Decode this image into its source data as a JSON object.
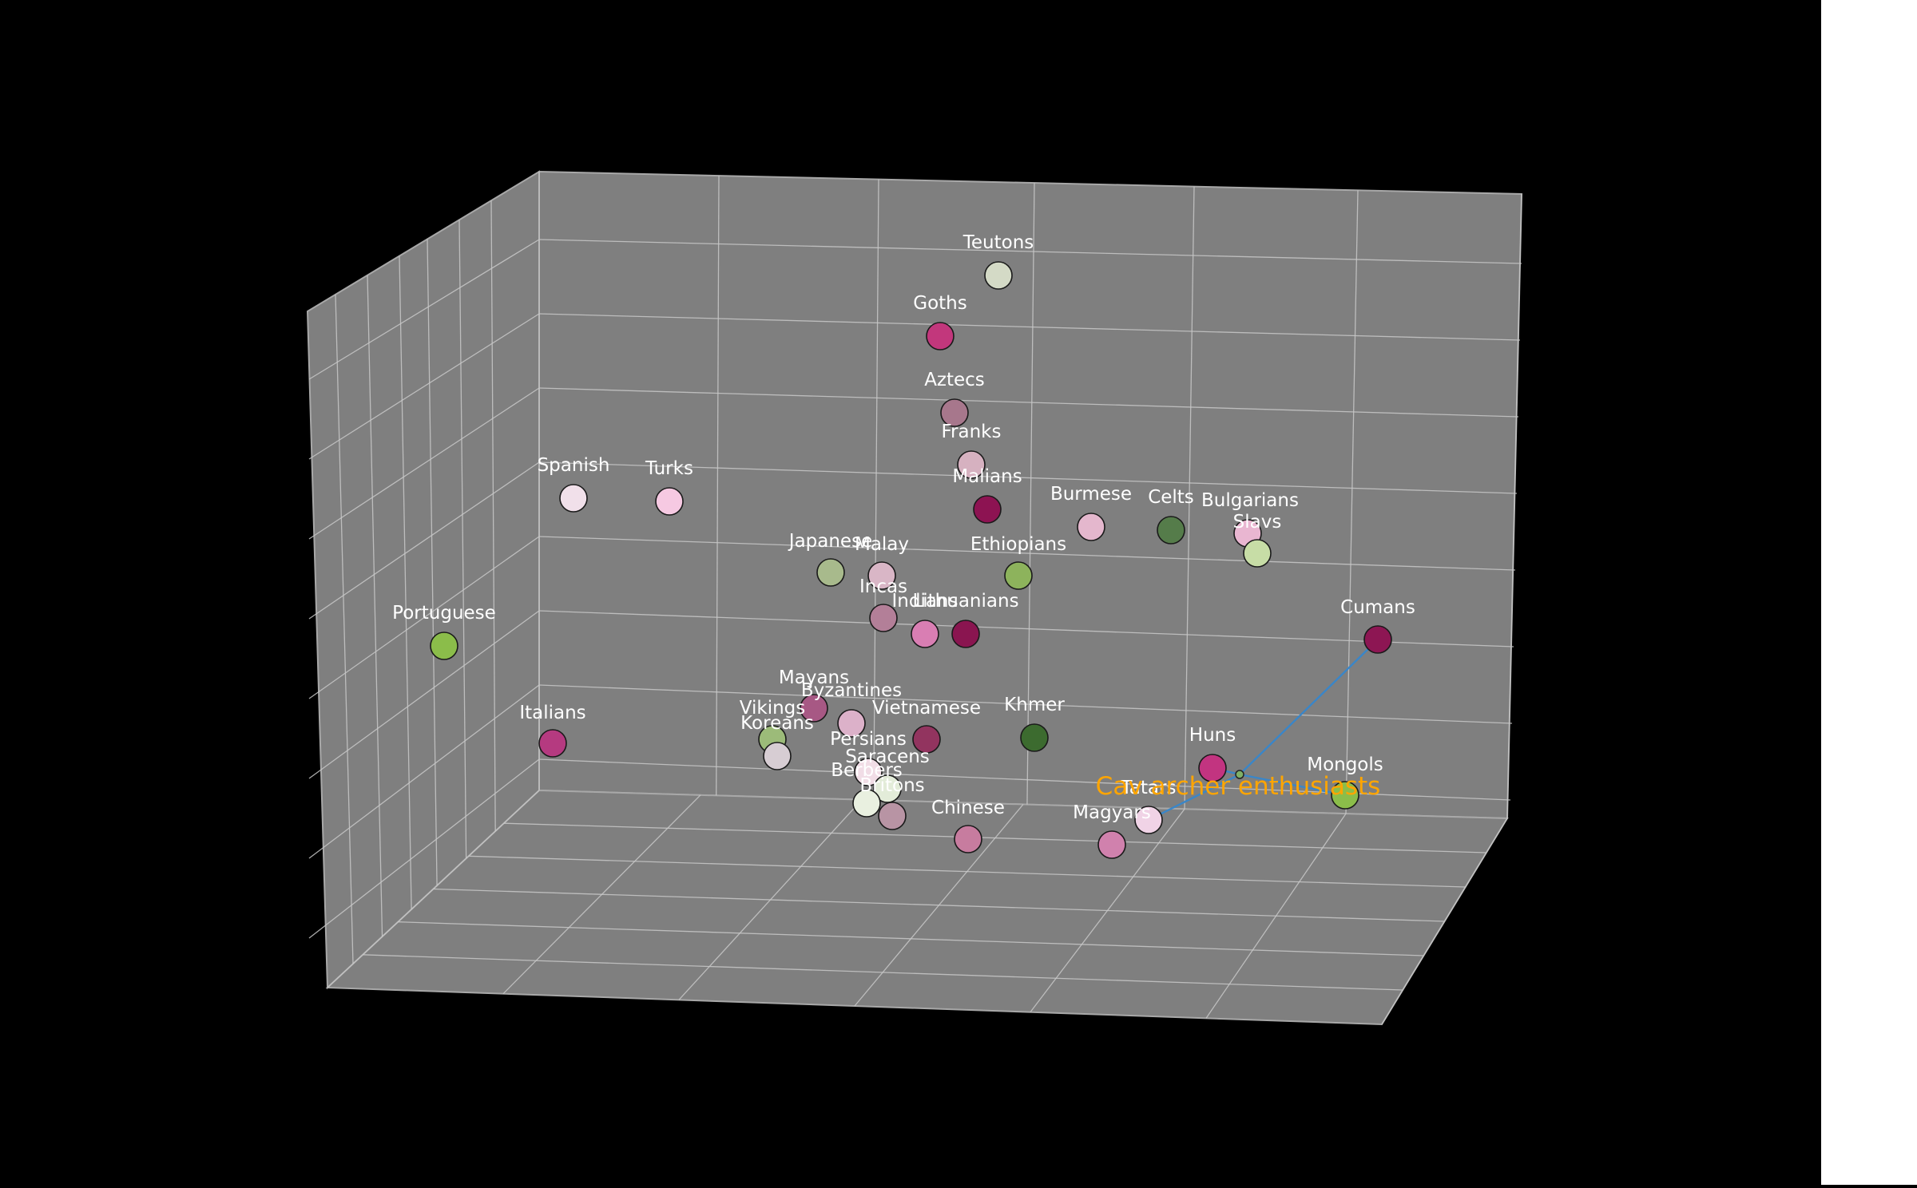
{
  "chart_data": {
    "type": "scatter",
    "projection": "3d",
    "title": "",
    "xlabel": "",
    "ylabel": "",
    "zlabel": "",
    "grid": true,
    "colors": {
      "figure_background": "#000000",
      "pane": "#7f7f7f",
      "grid": "#c8c8c8",
      "point_label": "#ffffff",
      "annotation": "#ffa500",
      "link_line": "#3a86c8"
    },
    "points": [
      {
        "name": "Teutons",
        "color": "#d4dac6"
      },
      {
        "name": "Goths",
        "color": "#c2377c"
      },
      {
        "name": "Aztecs",
        "color": "#a7778c"
      },
      {
        "name": "Franks",
        "color": "#d6b1c0"
      },
      {
        "name": "Spanish",
        "color": "#f1e0ea"
      },
      {
        "name": "Turks",
        "color": "#f6c9e2"
      },
      {
        "name": "Malians",
        "color": "#8d1352"
      },
      {
        "name": "Burmese",
        "color": "#e4b7cd"
      },
      {
        "name": "Celts",
        "color": "#557c4a"
      },
      {
        "name": "Bulgarians",
        "color": "#e9b6d1"
      },
      {
        "name": "Slavs",
        "color": "#c7dda6"
      },
      {
        "name": "Japanese",
        "color": "#a8ba8c"
      },
      {
        "name": "Malay",
        "color": "#d9b6c6"
      },
      {
        "name": "Ethiopians",
        "color": "#8db35c"
      },
      {
        "name": "Incas",
        "color": "#b37f98"
      },
      {
        "name": "Indians",
        "color": "#d97eb3"
      },
      {
        "name": "Lithuanians",
        "color": "#8a1550"
      },
      {
        "name": "Portuguese",
        "color": "#8bbd4a"
      },
      {
        "name": "Cumans",
        "color": "#8d1653"
      },
      {
        "name": "Mayans",
        "color": "#a75884"
      },
      {
        "name": "Byzantines",
        "color": "#dcb1c9"
      },
      {
        "name": "Vietnamese",
        "color": "#92345f"
      },
      {
        "name": "Khmer",
        "color": "#3c6b2f"
      },
      {
        "name": "Italians",
        "color": "#b53a80"
      },
      {
        "name": "Vikings",
        "color": "#9cbb79"
      },
      {
        "name": "Koreans",
        "color": "#d7cdd3"
      },
      {
        "name": "Persians",
        "color": "#f1dde6"
      },
      {
        "name": "Saracens",
        "color": "#e3ecd9"
      },
      {
        "name": "Berbers",
        "color": "#e9f0e0"
      },
      {
        "name": "Britons",
        "color": "#b894a4"
      },
      {
        "name": "Huns",
        "color": "#c23480"
      },
      {
        "name": "Mongols",
        "color": "#8bbd4a"
      },
      {
        "name": "Tatars",
        "color": "#f0d3e6"
      },
      {
        "name": "Chinese",
        "color": "#c77c9f"
      },
      {
        "name": "Magyars",
        "color": "#d081ad"
      }
    ],
    "cluster": {
      "label": "Cav archer enthusiasts",
      "members": [
        "Cumans",
        "Huns",
        "Mongols",
        "Tatars"
      ]
    }
  }
}
